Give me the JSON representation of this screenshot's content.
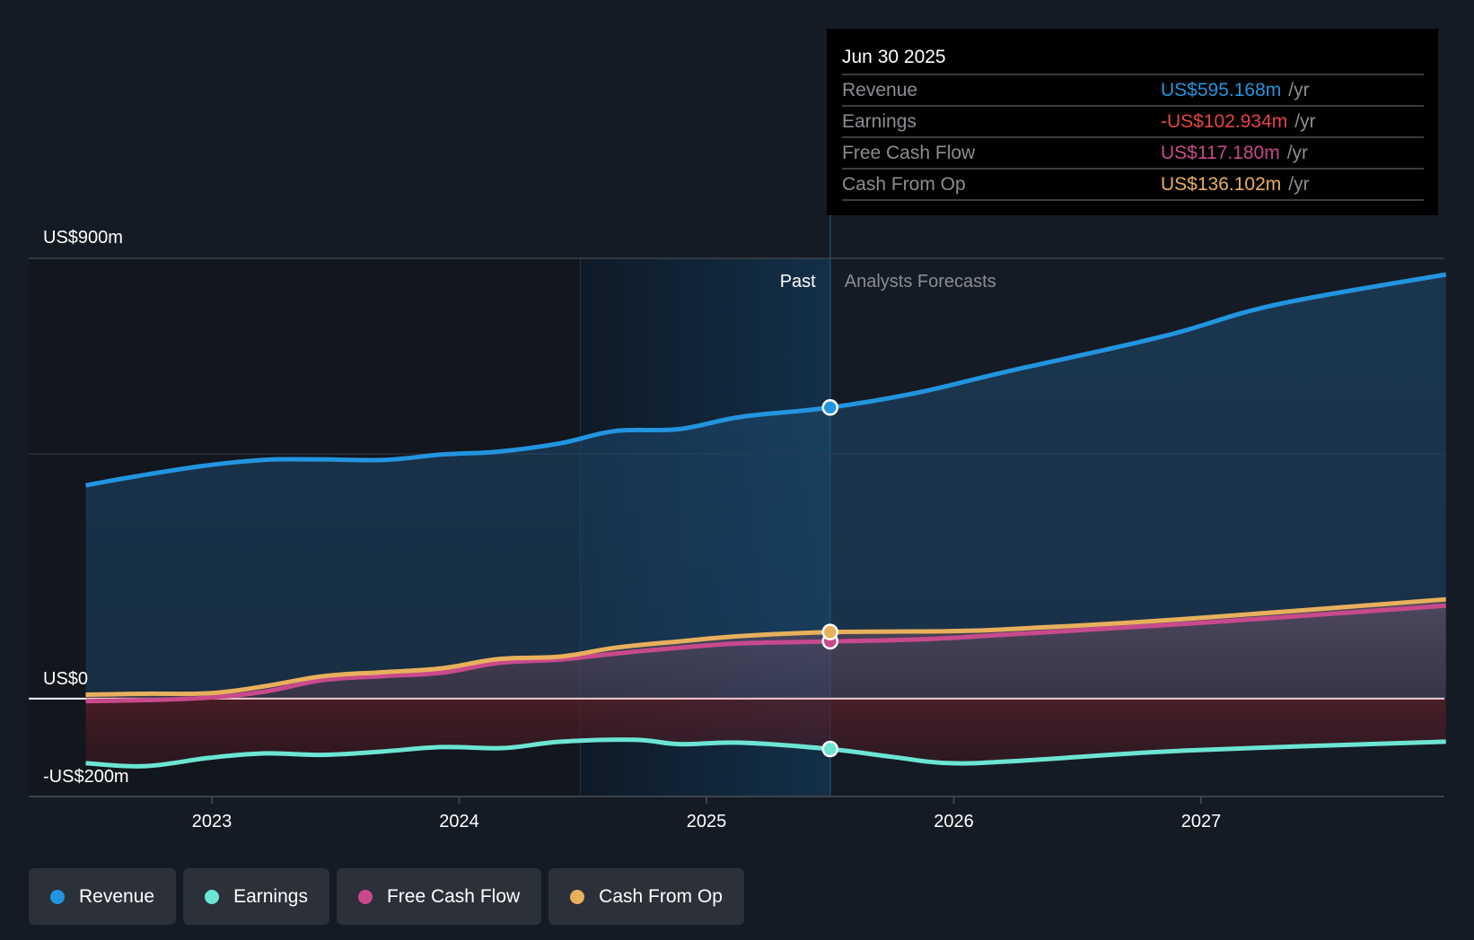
{
  "tooltip": {
    "date": "Jun 30 2025",
    "rows": [
      {
        "label": "Revenue",
        "value": "US$595.168m",
        "unit": "/yr",
        "color": "#2394df"
      },
      {
        "label": "Earnings",
        "value": "-US$102.934m",
        "unit": "/yr",
        "color": "#e64545"
      },
      {
        "label": "Free Cash Flow",
        "value": "US$117.180m",
        "unit": "/yr",
        "color": "#c84a8c"
      },
      {
        "label": "Cash From Op",
        "value": "US$136.102m",
        "unit": "/yr",
        "color": "#e8b05c"
      }
    ]
  },
  "regions": {
    "past_label": "Past",
    "forecast_label": "Analysts Forecasts"
  },
  "legend": [
    {
      "label": "Revenue",
      "color": "#2394df"
    },
    {
      "label": "Earnings",
      "color": "#6ce5d3"
    },
    {
      "label": "Free Cash Flow",
      "color": "#c84a8c"
    },
    {
      "label": "Cash From Op",
      "color": "#e8b05c"
    }
  ],
  "chart_data": {
    "type": "line",
    "title": "",
    "xlabel": "",
    "ylabel": "",
    "units": "US$ millions (annual)",
    "xlim": [
      2022.49,
      2027.99
    ],
    "ylim": [
      -200,
      900
    ],
    "y_tick_labels": [
      {
        "value": 900,
        "label": "US$900m"
      },
      {
        "value": 0,
        "label": "US$0"
      },
      {
        "value": -200,
        "label": "-US$200m"
      }
    ],
    "gridlines": [
      900,
      500,
      -200
    ],
    "x_ticks": [
      {
        "value": 2023,
        "label": "2023"
      },
      {
        "value": 2024,
        "label": "2024"
      },
      {
        "value": 2025,
        "label": "2025"
      },
      {
        "value": 2026,
        "label": "2026"
      },
      {
        "value": 2027,
        "label": "2027"
      }
    ],
    "past_forecast_split": 2025.5,
    "highlight_start": 2024.49,
    "legend_position": "bottom-left",
    "series": [
      {
        "name": "Revenue",
        "color": "#2394df",
        "x": [
          2022.49,
          2022.7,
          2022.97,
          2023.21,
          2023.43,
          2023.7,
          2023.93,
          2024.16,
          2024.41,
          2024.63,
          2024.89,
          2025.14,
          2025.5,
          2025.85,
          2026.21,
          2026.85,
          2027.3,
          2027.99
        ],
        "values": [
          436,
          455,
          476,
          488,
          489,
          488,
          499,
          505,
          522,
          547,
          551,
          576,
          595,
          625,
          668,
          741,
          805,
          867
        ]
      },
      {
        "name": "Earnings",
        "color": "#6ce5d3",
        "x": [
          2022.49,
          2022.73,
          2022.99,
          2023.21,
          2023.45,
          2023.69,
          2023.93,
          2024.18,
          2024.41,
          2024.71,
          2024.89,
          2025.14,
          2025.5,
          2025.75,
          2025.99,
          2026.3,
          2026.94,
          2027.99
        ],
        "values": [
          -132,
          -138,
          -121,
          -112,
          -115,
          -108,
          -99,
          -101,
          -88,
          -84,
          -93,
          -90,
          -103,
          -119,
          -132,
          -126,
          -106,
          -88
        ]
      },
      {
        "name": "Free Cash Flow",
        "color": "#c84a8c",
        "x": [
          2022.49,
          2022.73,
          2022.99,
          2023.21,
          2023.45,
          2023.69,
          2023.93,
          2024.16,
          2024.41,
          2024.63,
          2024.89,
          2025.14,
          2025.5,
          2025.99,
          2026.94,
          2027.99
        ],
        "values": [
          -5,
          -3,
          2,
          14,
          38,
          46,
          53,
          73,
          80,
          92,
          104,
          113,
          117,
          124,
          153,
          190
        ]
      },
      {
        "name": "Cash From Op",
        "color": "#e8b05c",
        "x": [
          2022.49,
          2022.73,
          2022.99,
          2023.21,
          2023.45,
          2023.69,
          2023.93,
          2024.16,
          2024.41,
          2024.63,
          2024.89,
          2025.14,
          2025.5,
          2025.99,
          2026.3,
          2026.94,
          2027.99
        ],
        "values": [
          8,
          10,
          11,
          25,
          46,
          54,
          62,
          81,
          86,
          104,
          117,
          128,
          136,
          138,
          144,
          163,
          203
        ]
      }
    ],
    "highlighted_point": {
      "x": 2025.5,
      "values": {
        "Revenue": 595.168,
        "Earnings": -102.934,
        "Free Cash Flow": 117.18,
        "Cash From Op": 136.102
      }
    }
  }
}
